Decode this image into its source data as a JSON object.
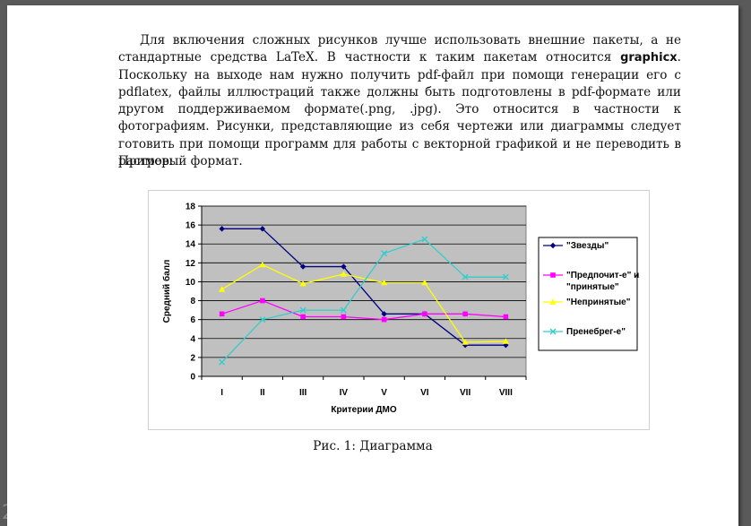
{
  "page": {
    "page_number": "2",
    "paragraph": {
      "part1": "Для включения сложных рисунков лучше использовать внешние пакеты, а не стандартные средства LaTeX. В частности к таким пакетам относится ",
      "bold": "graphicx",
      "part2": ". Поскольку на выходе нам нужно получить pdf-файл при помощи генерации его с pdflatex, файлы иллюстраций также должны быть подготовлены в pdf-формате или другом поддерживаемом формате(.png, .jpg). Это относится в частности к фотографиям. Рисунки, представляющие из себя чертежи или диаграммы следует готовить при помощи программ для работы с векторной графикой и не переводить в растровый формат."
    },
    "example_label": "Пример:",
    "caption": "Рис. 1: Диаграмма"
  },
  "chart_data": {
    "type": "line",
    "categories": [
      "I",
      "II",
      "III",
      "IV",
      "V",
      "VI",
      "VII",
      "VIII"
    ],
    "xlabel": "Критерии ДМО",
    "ylabel": "Средний балл",
    "ylim": [
      0,
      18
    ],
    "yticks": [
      0,
      2,
      4,
      6,
      8,
      10,
      12,
      14,
      16,
      18
    ],
    "grid": true,
    "plot_background": "#c0c0c0",
    "legend_position": "right",
    "series": [
      {
        "name": "\"Звезды\"",
        "color": "#000080",
        "marker": "diamond",
        "values": [
          15.6,
          15.6,
          11.6,
          11.6,
          6.6,
          6.6,
          3.3,
          3.3
        ]
      },
      {
        "name": "\"Предпочит-е\" и \"принятые\"",
        "color": "#ff00ff",
        "marker": "square",
        "values": [
          6.6,
          8.0,
          6.3,
          6.3,
          6.0,
          6.6,
          6.6,
          6.3
        ]
      },
      {
        "name": "\"Непринятые\"",
        "color": "#ffff00",
        "marker": "triangle",
        "values": [
          9.2,
          11.8,
          9.8,
          10.8,
          9.9,
          9.9,
          3.6,
          3.7
        ]
      },
      {
        "name": "Пренебрег-е\"",
        "color": "#33cccc",
        "marker": "x",
        "values": [
          1.5,
          6.0,
          7.0,
          7.0,
          13.0,
          14.5,
          10.5,
          10.5
        ]
      }
    ]
  }
}
